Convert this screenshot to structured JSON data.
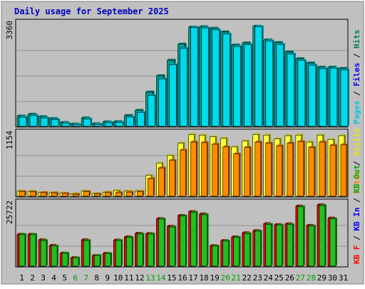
{
  "chart_data": {
    "type": "bar",
    "title": "Daily usage for September 2025",
    "categories": [
      "1",
      "2",
      "3",
      "4",
      "5",
      "6",
      "7",
      "8",
      "9",
      "10",
      "11",
      "12",
      "13",
      "14",
      "15",
      "16",
      "17",
      "18",
      "19",
      "20",
      "21",
      "22",
      "23",
      "24",
      "25",
      "26",
      "27",
      "28",
      "29",
      "30",
      "31"
    ],
    "weekend_days": [
      "6",
      "7",
      "13",
      "14",
      "20",
      "21",
      "27",
      "28"
    ],
    "panels": [
      {
        "id": "traffic",
        "max_label": "3360",
        "ylim": [
          0,
          3360
        ],
        "legend": [
          {
            "text": "Pages",
            "color": "#00c8e0"
          },
          {
            "text": " / ",
            "color": "#000000"
          },
          {
            "text": "Files",
            "color": "#0000ff"
          },
          {
            "text": " / ",
            "color": "#000000"
          },
          {
            "text": "Hits",
            "color": "#00805a"
          }
        ],
        "series": [
          {
            "name": "Hits",
            "color": "#009b8a",
            "values": [
              360,
              420,
              340,
              280,
              150,
              100,
              300,
              110,
              170,
              180,
              380,
              550,
              1150,
              1690,
              2200,
              2730,
              3290,
              3300,
              3250,
              3130,
              2700,
              2770,
              3320,
              2870,
              2780,
              2470,
              2250,
              2110,
              1970,
              1970,
              1930
            ]
          },
          {
            "name": "Files",
            "color": "#0000e0",
            "values": [
              0,
              0,
              0,
              0,
              0,
              0,
              0,
              0,
              0,
              0,
              0,
              0,
              0,
              0,
              0,
              0,
              280,
              300,
              280,
              250,
              220,
              230,
              300,
              220,
              200,
              180,
              160,
              150,
              140,
              140,
              130
            ]
          },
          {
            "name": "Pages",
            "color": "#00d8ec",
            "values": [
              320,
              380,
              300,
              240,
              120,
              75,
              260,
              80,
              140,
              150,
              330,
              480,
              1040,
              1580,
              2050,
              2590,
              3270,
              3260,
              3200,
              3060,
              2650,
              2710,
              3300,
              2830,
              2720,
              2400,
              2190,
              2040,
              1920,
              1930,
              1880
            ]
          }
        ]
      },
      {
        "id": "visitors",
        "max_label": "1154",
        "ylim": [
          0,
          1154
        ],
        "legend": [
          {
            "text": "Sites",
            "color": "#ff8c00"
          },
          {
            "text": " / ",
            "color": "#000000"
          },
          {
            "text": "Visits",
            "color": "#e8e800"
          }
        ],
        "series": [
          {
            "name": "Visits",
            "color": "#ffff33",
            "values": [
              110,
              105,
              85,
              80,
              75,
              60,
              110,
              65,
              90,
              120,
              110,
              110,
              400,
              630,
              770,
              1000,
              1160,
              1150,
              1120,
              1090,
              930,
              1040,
              1160,
              1150,
              1080,
              1140,
              1150,
              1020,
              1150,
              1070,
              1140
            ]
          },
          {
            "name": "Sites",
            "color": "#ff8c00",
            "values": [
              100,
              95,
              80,
              75,
              65,
              50,
              100,
              55,
              80,
              80,
              90,
              100,
              340,
              540,
              680,
              870,
              1020,
              1010,
              980,
              930,
              800,
              920,
              1020,
              1000,
              950,
              1000,
              1030,
              920,
              1020,
              960,
              970
            ]
          }
        ]
      },
      {
        "id": "kbytes",
        "max_label": "25722",
        "ylim": [
          0,
          25722
        ],
        "legend": [
          {
            "text": "KB F",
            "color": "#ff0000"
          },
          {
            "text": " / ",
            "color": "#000000"
          },
          {
            "text": "KB In",
            "color": "#0000ff"
          },
          {
            "text": " / ",
            "color": "#000000"
          },
          {
            "text": "KB Out",
            "color": "#00b000"
          }
        ],
        "series": [
          {
            "name": "KB F",
            "color": "#e00000",
            "values": [
              13500,
              13500,
              11200,
              8900,
              5700,
              3800,
              11200,
              4700,
              5600,
              11100,
              12400,
              13900,
              13800,
              20000,
              16800,
              21300,
              22900,
              21900,
              8800,
              10900,
              12400,
              14100,
              15000,
              17900,
              17500,
              17800,
              25200,
              17200,
              25700,
              20200,
              0
            ]
          },
          {
            "name": "KB Out",
            "color": "#20c020",
            "values": [
              13400,
              13400,
              10900,
              8600,
              5600,
              3700,
              10900,
              4700,
              5500,
              10900,
              12200,
              13600,
              13600,
              19800,
              16500,
              21100,
              22600,
              21600,
              8600,
              10700,
              12200,
              13800,
              14800,
              17600,
              17300,
              17500,
              24900,
              16900,
              25400,
              19900,
              0
            ]
          }
        ]
      }
    ]
  }
}
